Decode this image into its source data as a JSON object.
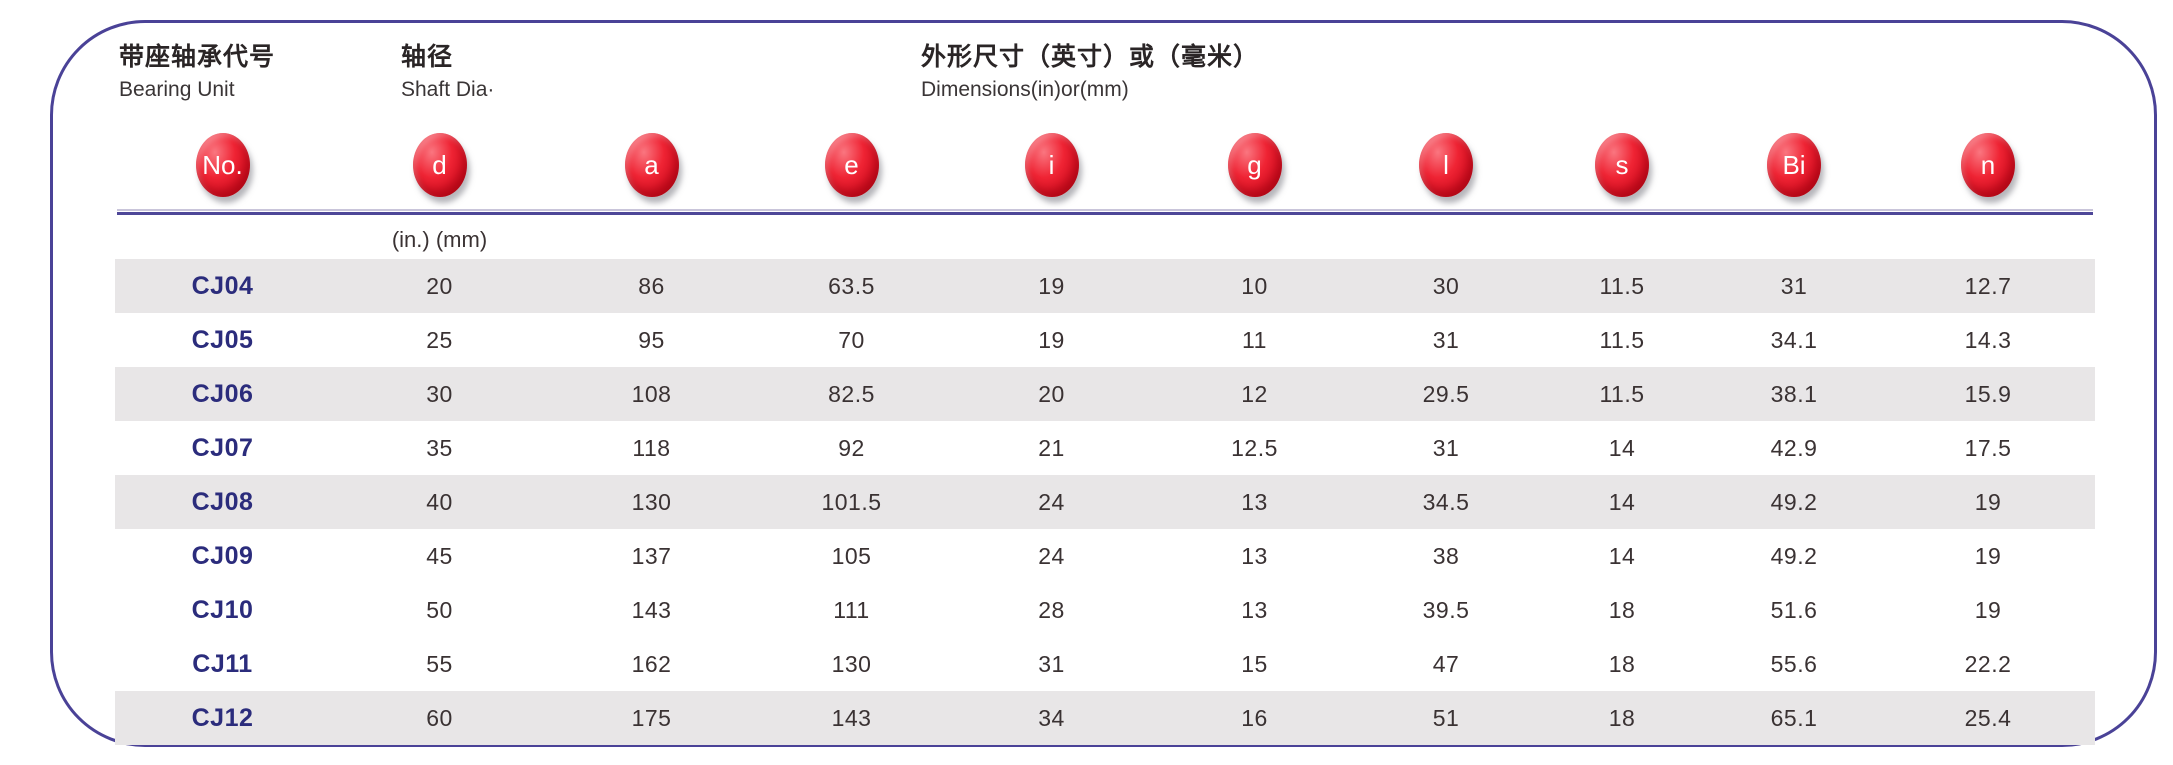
{
  "header": {
    "groups": [
      {
        "zh": "带座轴承代号",
        "en": "Bearing Unit"
      },
      {
        "zh": "轴径",
        "en": "Shaft Dia·"
      },
      {
        "zh": "外形尺寸（英寸）或（毫米）",
        "en": "Dimensions(in)or(mm)"
      }
    ],
    "unit_note": "(in.) (mm)"
  },
  "columns": [
    "No.",
    "d",
    "a",
    "e",
    "i",
    "g",
    "l",
    "s",
    "Bi",
    "n"
  ],
  "rows": [
    {
      "no": "CJ04",
      "shaded": true,
      "values": [
        "20",
        "86",
        "63.5",
        "19",
        "10",
        "30",
        "11.5",
        "31",
        "12.7"
      ]
    },
    {
      "no": "CJ05",
      "shaded": false,
      "values": [
        "25",
        "95",
        "70",
        "19",
        "11",
        "31",
        "11.5",
        "34.1",
        "14.3"
      ]
    },
    {
      "no": "CJ06",
      "shaded": true,
      "values": [
        "30",
        "108",
        "82.5",
        "20",
        "12",
        "29.5",
        "11.5",
        "38.1",
        "15.9"
      ]
    },
    {
      "no": "CJ07",
      "shaded": false,
      "values": [
        "35",
        "118",
        "92",
        "21",
        "12.5",
        "31",
        "14",
        "42.9",
        "17.5"
      ]
    },
    {
      "no": "CJ08",
      "shaded": true,
      "values": [
        "40",
        "130",
        "101.5",
        "24",
        "13",
        "34.5",
        "14",
        "49.2",
        "19"
      ]
    },
    {
      "no": "CJ09",
      "shaded": false,
      "values": [
        "45",
        "137",
        "105",
        "24",
        "13",
        "38",
        "14",
        "49.2",
        "19"
      ]
    },
    {
      "no": "CJ10",
      "shaded": false,
      "values": [
        "50",
        "143",
        "111",
        "28",
        "13",
        "39.5",
        "18",
        "51.6",
        "19"
      ]
    },
    {
      "no": "CJ11",
      "shaded": false,
      "values": [
        "55",
        "162",
        "130",
        "31",
        "15",
        "47",
        "18",
        "55.6",
        "22.2"
      ]
    },
    {
      "no": "CJ12",
      "shaded": true,
      "values": [
        "60",
        "175",
        "143",
        "34",
        "16",
        "51",
        "18",
        "65.1",
        "25.4"
      ]
    }
  ],
  "colors": {
    "panel_border": "#4a4297",
    "badge_red": "#e01527",
    "row_shade": "#e8e6e7",
    "code_navy": "#2b2c7c",
    "value_text": "#3a3233"
  }
}
